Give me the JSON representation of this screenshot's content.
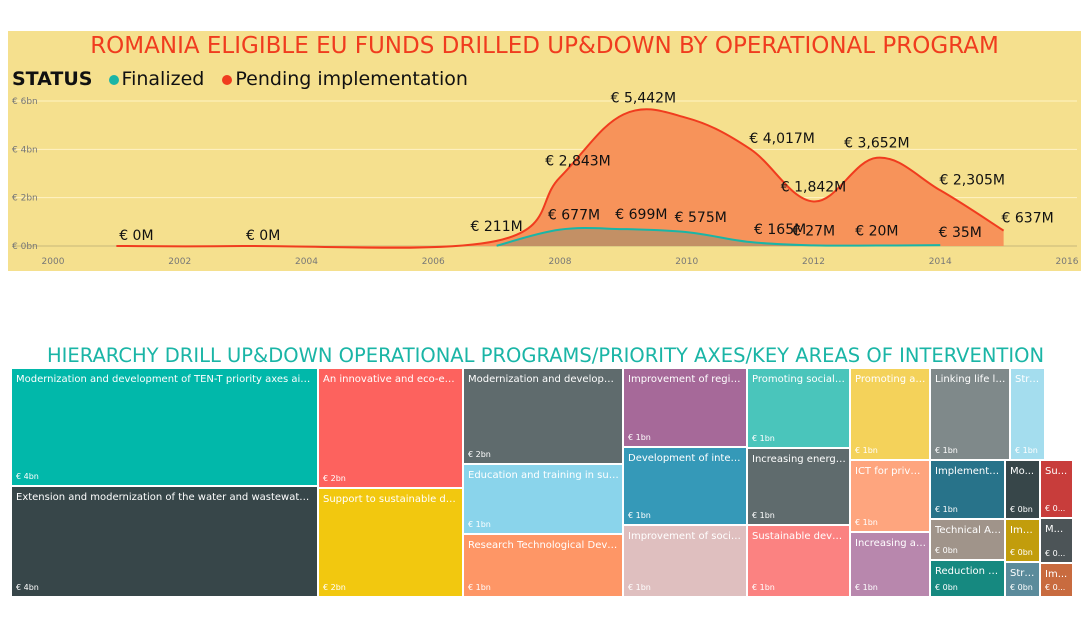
{
  "chart_data": [
    {
      "type": "area",
      "title": "ROMANIA ELIGIBLE EU FUNDS DRILLED UP&DOWN BY OPERATIONAL PROGRAM",
      "legend": {
        "title": "STATUS",
        "placement": "top-left"
      },
      "xlim": [
        2000,
        2016
      ],
      "x_ticks": [
        "2000",
        "2002",
        "2004",
        "2006",
        "2008",
        "2010",
        "2012",
        "2014",
        "2016"
      ],
      "ylim": [
        0,
        6000
      ],
      "y_ticks": [
        {
          "value": 0,
          "label": "€ 0bn"
        },
        {
          "value": 2000,
          "label": "€ 2bn"
        },
        {
          "value": 4000,
          "label": "€ 4bn"
        },
        {
          "value": 6000,
          "label": "€ 6bn"
        }
      ],
      "grid": true,
      "series": [
        {
          "name": "Pending implementation",
          "color": "#f03c1e",
          "fill": "#f7935a",
          "x": [
            2001,
            2003,
            2007,
            2008,
            2009,
            2010,
            2011,
            2012,
            2013,
            2014,
            2015
          ],
          "y": [
            0,
            0,
            211,
            2843,
            5442,
            5300,
            4017,
            1842,
            3652,
            2305,
            637
          ],
          "point_labels": [
            "€ 0M",
            "€ 0M",
            "€ 211M",
            "€ 2,843M",
            "€ 5,442M",
            "",
            "€ 4,017M",
            "€ 1,842M",
            "€ 3,652M",
            "€ 2,305M",
            "€ 637M"
          ]
        },
        {
          "name": "Finalized",
          "color": "#1ab5a6",
          "fill": "#b59068",
          "x": [
            2007,
            2008,
            2009,
            2010,
            2011,
            2012,
            2013,
            2014
          ],
          "y": [
            10,
            677,
            699,
            575,
            165,
            27,
            20,
            35
          ],
          "point_labels": [
            "",
            "€ 677M",
            "€ 699M",
            "€ 575M",
            "€ 165M",
            "€ 27M",
            "€ 20M",
            "€ 35M"
          ]
        }
      ]
    },
    {
      "type": "treemap",
      "title": "HIERARCHY DRILL UP&DOWN OPERATIONAL PROGRAMS/PRIORITY AXES/KEY AREAS OF INTERVENTION",
      "tiles": [
        {
          "label": "Modernization and development of TEN-T priority axes aiming a...",
          "value": "€ 4bn",
          "color": "#01b8aa"
        },
        {
          "label": "Extension and modernization of the water and wastewater syste...",
          "value": "€ 4bn",
          "color": "#374649"
        },
        {
          "label": "An innovative and eco-effici...",
          "value": "€ 2bn",
          "color": "#fd625e"
        },
        {
          "label": "Support to sustainable deve...",
          "value": "€ 2bn",
          "color": "#f2c80f"
        },
        {
          "label": "Modernization and developme...",
          "value": "€ 2bn",
          "color": "#5f6b6d"
        },
        {
          "label": "Education and training in supp...",
          "value": "€ 1bn",
          "color": "#8ad4eb"
        },
        {
          "label": "Research Technological Develo...",
          "value": "€ 1bn",
          "color": "#fe9666"
        },
        {
          "label": "Improvement of region...",
          "value": "€ 1bn",
          "color": "#a66999"
        },
        {
          "label": "Development of integra...",
          "value": "€ 1bn",
          "color": "#3599b8"
        },
        {
          "label": "Improvement of social i...",
          "value": "€ 1bn",
          "color": "#dfbfbf"
        },
        {
          "label": "Promoting social in...",
          "value": "€ 1bn",
          "color": "#4ac5bb"
        },
        {
          "label": "Increasing energy ...",
          "value": "€ 1bn",
          "color": "#5f6b6d"
        },
        {
          "label": "Sustainable develo...",
          "value": "€ 1bn",
          "color": "#fb8281"
        },
        {
          "label": "Promoting ac...",
          "value": "€ 1bn",
          "color": "#f4d25a"
        },
        {
          "label": "ICT for privat...",
          "value": "€ 1bn",
          "color": "#fea57e"
        },
        {
          "label": "Increasing ad...",
          "value": "€ 1bn",
          "color": "#b887ad"
        },
        {
          "label": "Linking life lo...",
          "value": "€ 1bn",
          "color": "#7f898a"
        },
        {
          "label": "Strengthe...",
          "value": "€ 1bn",
          "color": "#a4ddee"
        },
        {
          "label": "Implementat...",
          "value": "€ 1bn",
          "color": "#28738a"
        },
        {
          "label": "Mo...",
          "value": "€ 0bn",
          "color": "#374649"
        },
        {
          "label": "Su...",
          "value": "€ 0...",
          "color": "#c83d3b"
        },
        {
          "label": "Technical As...",
          "value": "€ 0bn",
          "color": "#a0948a"
        },
        {
          "label": "Impl...",
          "value": "€ 0bn",
          "color": "#c29d0c"
        },
        {
          "label": "M...",
          "value": "€ 0...",
          "color": "#4c5457"
        },
        {
          "label": "Reduction of...",
          "value": "€ 0bn",
          "color": "#168980"
        },
        {
          "label": "Stru...",
          "value": "€ 0bn",
          "color": "#5b8b9b"
        },
        {
          "label": "Im...",
          "value": "€ 0...",
          "color": "#c86b3f"
        }
      ]
    }
  ]
}
